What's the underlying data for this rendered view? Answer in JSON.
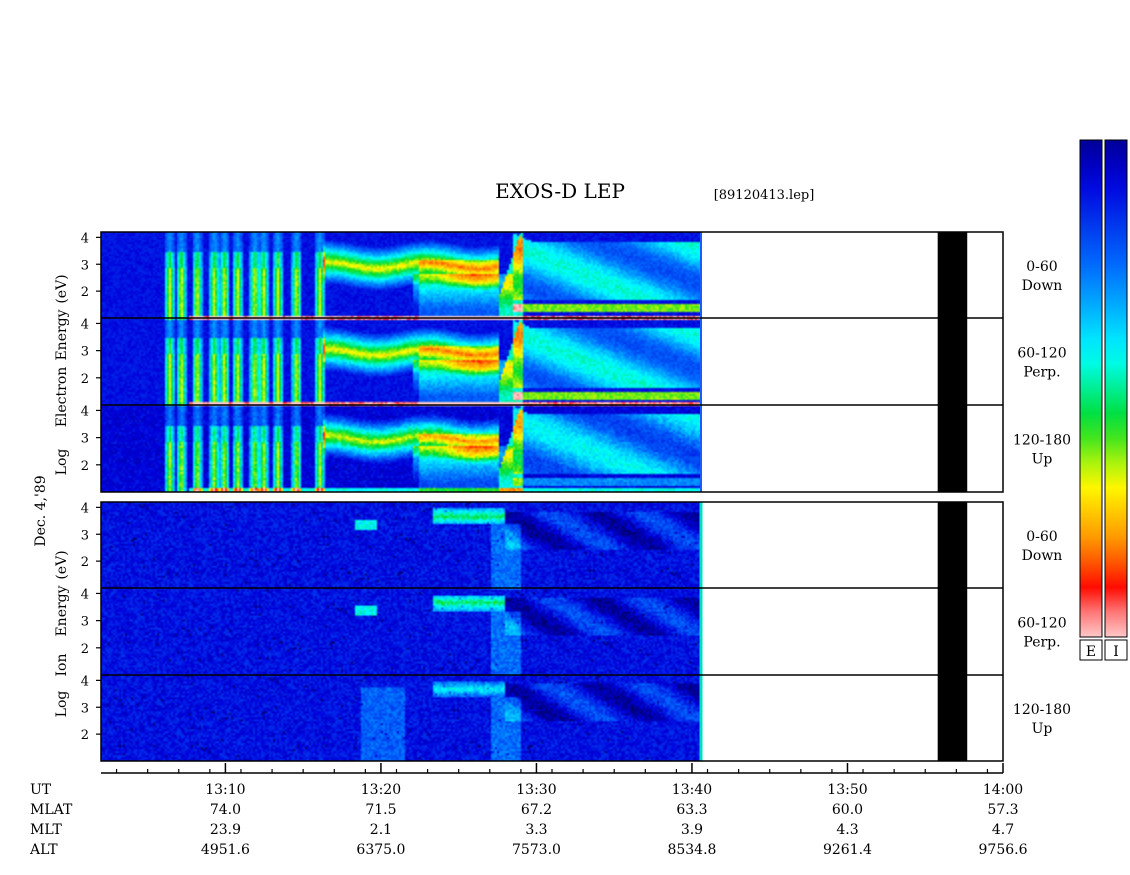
{
  "chart_data": {
    "type": "heatmap",
    "title": "EXOS-D LEP",
    "file_label": "[89120413.lep]",
    "date_label": "Dec. 4,'89",
    "electron_ylabel": [
      "Log",
      "Electron",
      "Energy",
      "(eV)"
    ],
    "ion_ylabel": [
      "Log",
      "Ion",
      "Energy",
      "(eV)"
    ],
    "ylim": [
      1,
      4.2
    ],
    "y_ticks": [
      "4",
      "3",
      "2"
    ],
    "panels": [
      {
        "species": "Electron",
        "pitch_range": "0-60",
        "direction": "Down"
      },
      {
        "species": "Electron",
        "pitch_range": "60-120",
        "direction": "Perp."
      },
      {
        "species": "Electron",
        "pitch_range": "120-180",
        "direction": "Up"
      },
      {
        "species": "Ion",
        "pitch_range": "0-60",
        "direction": "Down"
      },
      {
        "species": "Ion",
        "pitch_range": "60-120",
        "direction": "Perp."
      },
      {
        "species": "Ion",
        "pitch_range": "120-180",
        "direction": "Up"
      }
    ],
    "x_axis": {
      "range_minutes": [
        "13:02",
        "14:00"
      ],
      "start_minute": 782,
      "end_minute": 840,
      "data_end_minute": 823.6,
      "gap_start_minute": 835.8,
      "gap_end_minute": 837.7,
      "ticks": [
        {
          "UT": "13:10",
          "MLAT": "74.0",
          "MLT": "23.9",
          "ALT": "4951.6",
          "minute": 790
        },
        {
          "UT": "13:20",
          "MLAT": "71.5",
          "MLT": "2.1",
          "ALT": "6375.0",
          "minute": 800
        },
        {
          "UT": "13:30",
          "MLAT": "67.2",
          "MLT": "3.3",
          "ALT": "7573.0",
          "minute": 810
        },
        {
          "UT": "13:40",
          "MLAT": "63.3",
          "MLT": "3.9",
          "ALT": "8534.8",
          "minute": 820
        },
        {
          "UT": "13:50",
          "MLAT": "60.0",
          "MLT": "4.3",
          "ALT": "9261.4",
          "minute": 830
        },
        {
          "UT": "14:00",
          "MLAT": "57.3",
          "MLT": "4.7",
          "ALT": "9756.6",
          "minute": 840
        }
      ]
    },
    "row_labels": [
      "UT",
      "MLAT",
      "MLT",
      "ALT"
    ],
    "colorbars": [
      {
        "label": "E"
      },
      {
        "label": "I"
      }
    ],
    "colors": {
      "background": "#ffffff",
      "data_gap": "#000000",
      "electron_edge": "#1a5cff",
      "ion_edge": "#00e0c0",
      "scale": [
        "#ffffff",
        "#ff0000",
        "#ff9900",
        "#ffff00",
        "#00dd00",
        "#00ffff",
        "#0066ff",
        "#0000cc",
        "#000066"
      ]
    }
  }
}
